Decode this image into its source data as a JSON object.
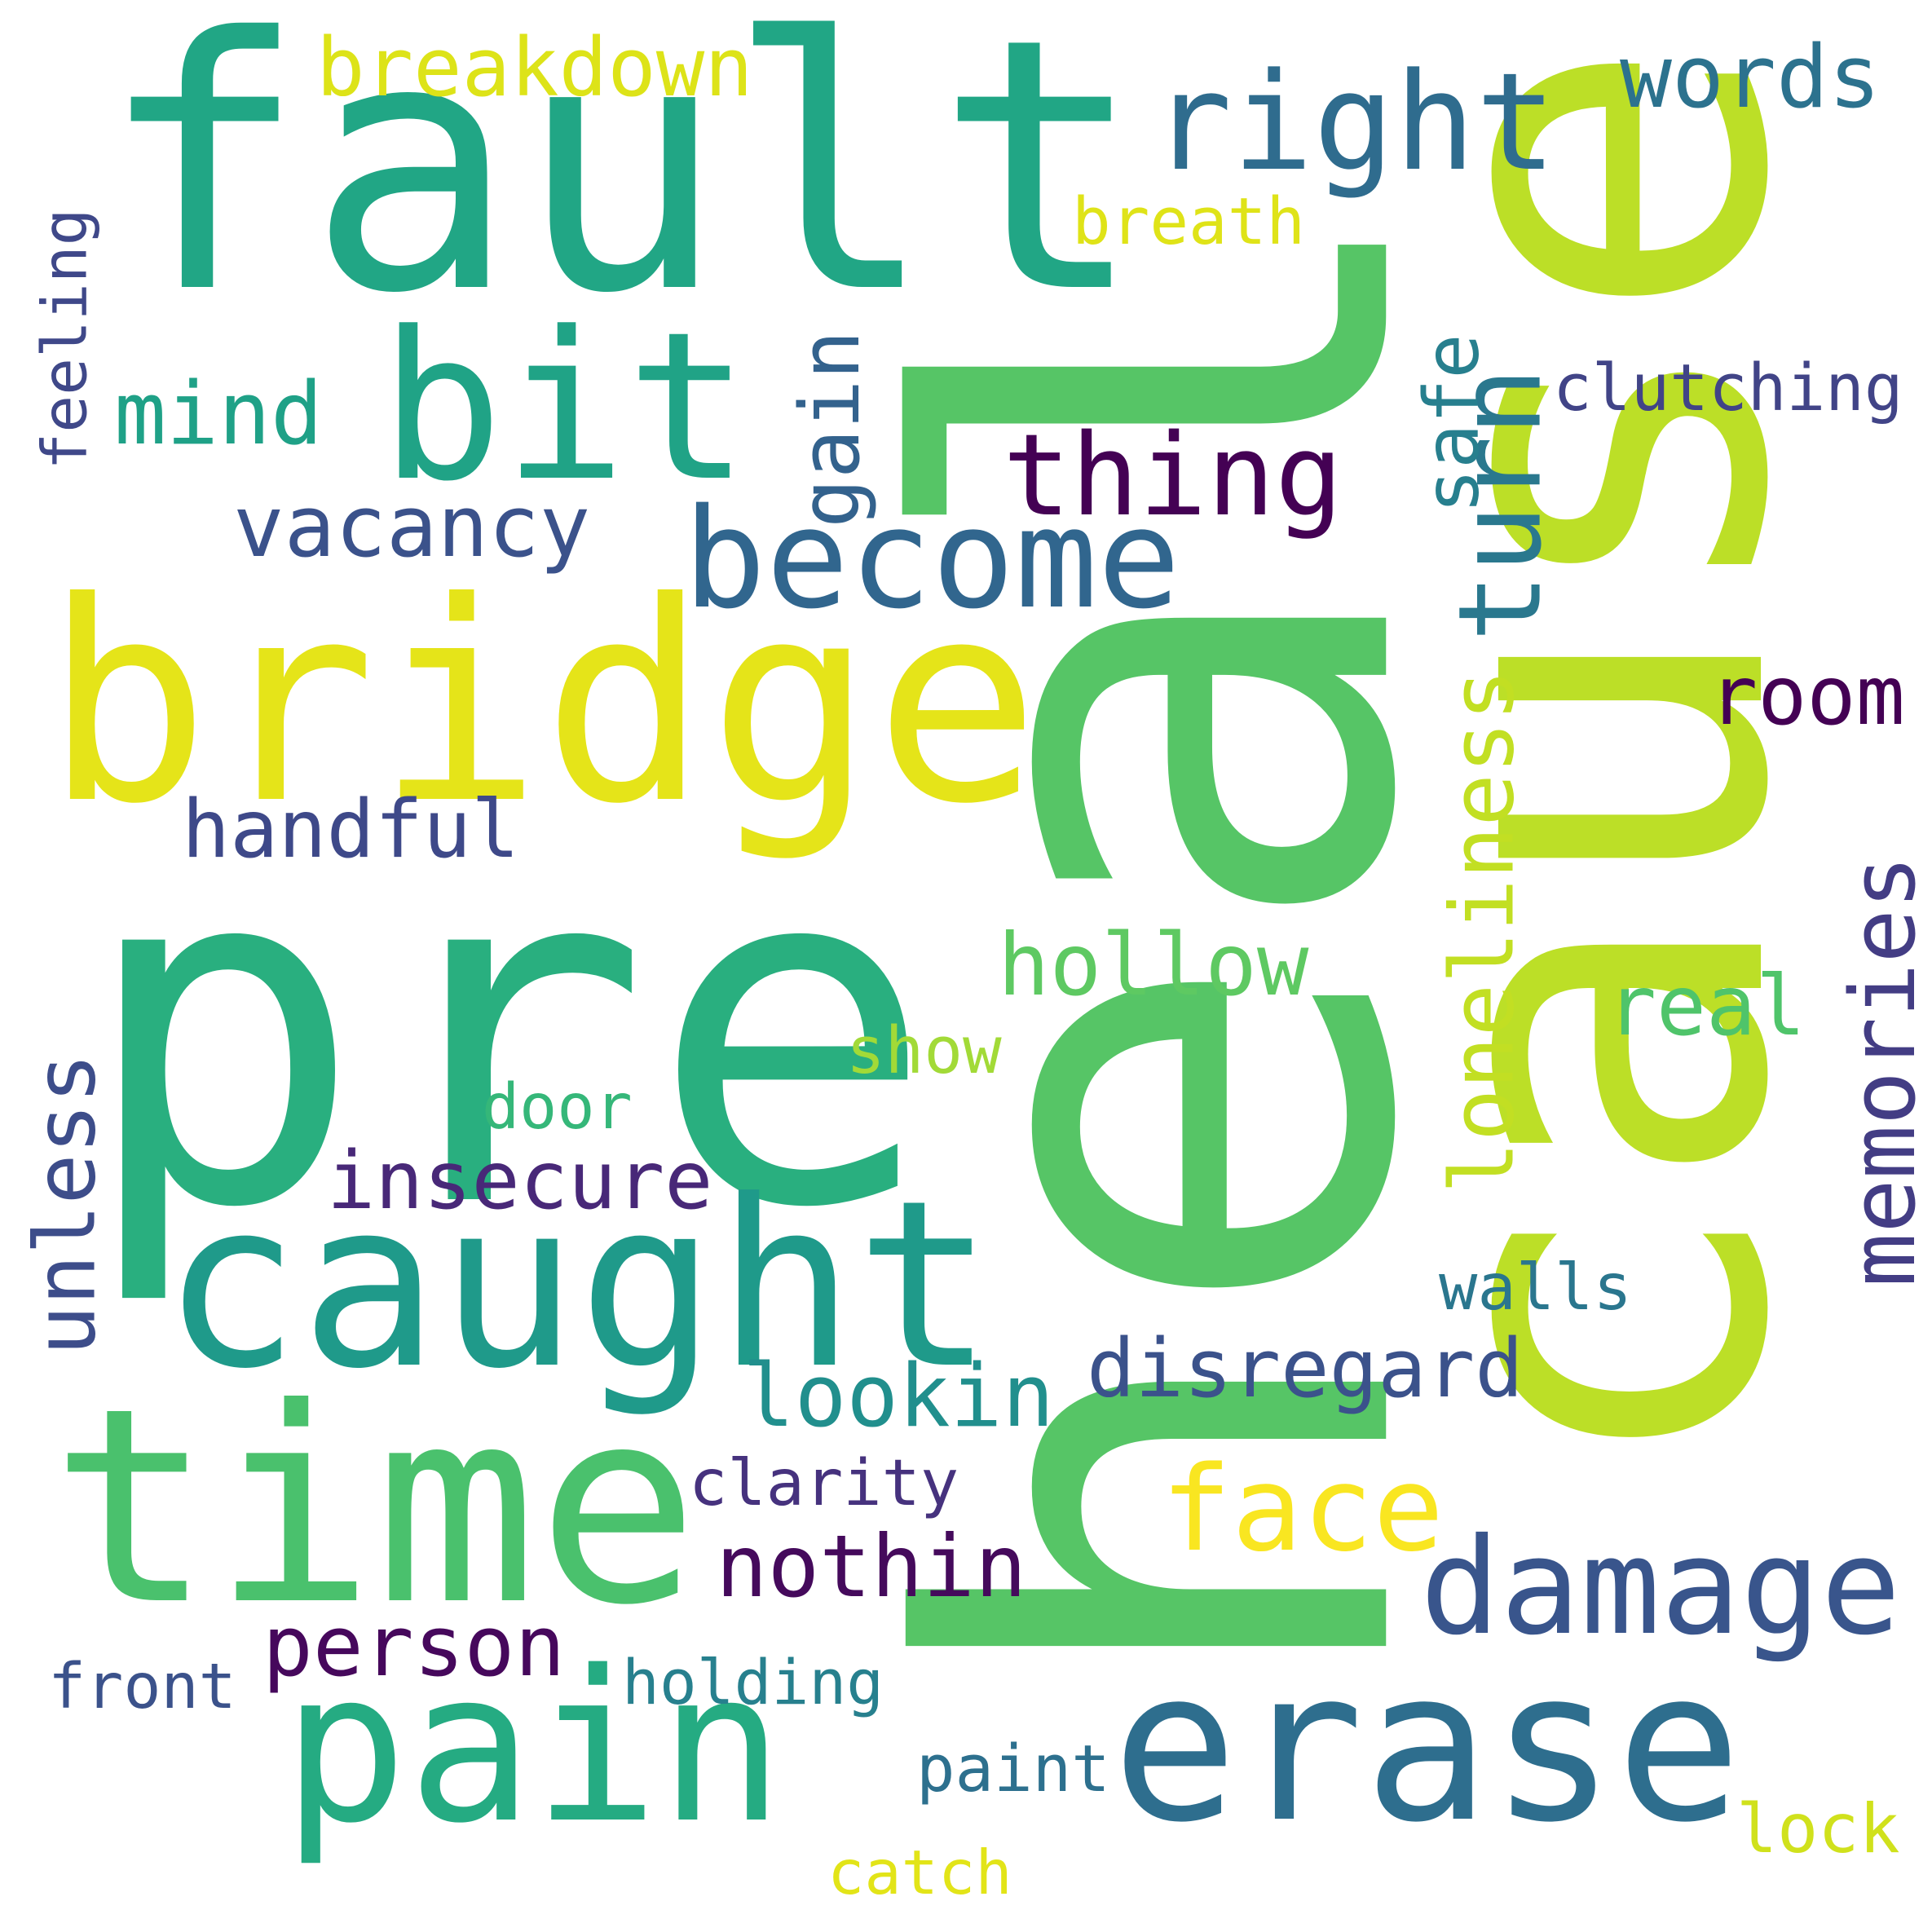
{
  "words": [
    {
      "id": "heal",
      "text": "heal",
      "color": "#56c566"
    },
    {
      "id": "cause",
      "text": "cause",
      "color": "#bcdf27"
    },
    {
      "id": "fault",
      "text": "fault",
      "color": "#21a685"
    },
    {
      "id": "pre",
      "text": "pre",
      "color": "#29af7f"
    },
    {
      "id": "bridge",
      "text": "bridge",
      "color": "#e5e419"
    },
    {
      "id": "caught",
      "text": "caught",
      "color": "#1f9a8a"
    },
    {
      "id": "time",
      "text": "time",
      "color": "#4ac16d"
    },
    {
      "id": "bit",
      "text": "bit",
      "color": "#20a386"
    },
    {
      "id": "right",
      "text": "right",
      "color": "#2f6c8e"
    },
    {
      "id": "pain",
      "text": "pain",
      "color": "#25ab82"
    },
    {
      "id": "erase",
      "text": "erase",
      "color": "#2e6e8e"
    },
    {
      "id": "damage",
      "text": "damage",
      "color": "#39558c"
    },
    {
      "id": "become",
      "text": "become",
      "color": "#31668e"
    },
    {
      "id": "thing",
      "text": "thing",
      "color": "#440154"
    },
    {
      "id": "turn",
      "text": "turn",
      "color": "#2a788e"
    },
    {
      "id": "face",
      "text": "face",
      "color": "#f9e621"
    },
    {
      "id": "nothin",
      "text": "nothin",
      "color": "#450a5c"
    },
    {
      "id": "lookin",
      "text": "lookin",
      "color": "#218f8d"
    },
    {
      "id": "hollow",
      "text": "hollow",
      "color": "#5ec962"
    },
    {
      "id": "disregard",
      "text": "disregard",
      "color": "#3b528b"
    },
    {
      "id": "insecure",
      "text": "insecure",
      "color": "#482878"
    },
    {
      "id": "person",
      "text": "person",
      "color": "#46085c"
    },
    {
      "id": "handful",
      "text": "handful",
      "color": "#3e4989"
    },
    {
      "id": "vacancy",
      "text": "vacancy",
      "color": "#3b528b"
    },
    {
      "id": "mind",
      "text": "mind",
      "color": "#1fa187"
    },
    {
      "id": "gain",
      "text": "gain",
      "color": "#33628d"
    },
    {
      "id": "breakdown",
      "text": "breakdown",
      "color": "#dde318"
    },
    {
      "id": "words",
      "text": "words",
      "color": "#2c728e"
    },
    {
      "id": "breath",
      "text": "breath",
      "color": "#dfe318"
    },
    {
      "id": "safe",
      "text": "safe",
      "color": "#277f8e"
    },
    {
      "id": "clutching",
      "text": "clutching",
      "color": "#414487"
    },
    {
      "id": "room",
      "text": "room",
      "color": "#440154"
    },
    {
      "id": "loneliness",
      "text": "loneliness",
      "color": "#c2df23"
    },
    {
      "id": "memories",
      "text": "memories",
      "color": "#433d84"
    },
    {
      "id": "real",
      "text": "real",
      "color": "#4fc46a"
    },
    {
      "id": "walls",
      "text": "walls",
      "color": "#2a768e"
    },
    {
      "id": "unless",
      "text": "unless",
      "color": "#3d4d8a"
    },
    {
      "id": "feeling",
      "text": "feeling",
      "color": "#3f4889"
    },
    {
      "id": "show",
      "text": "show",
      "color": "#a2da37"
    },
    {
      "id": "door",
      "text": "door",
      "color": "#35b779"
    },
    {
      "id": "clarity",
      "text": "clarity",
      "color": "#46327e"
    },
    {
      "id": "front",
      "text": "front",
      "color": "#3b528b"
    },
    {
      "id": "holding",
      "text": "holding",
      "color": "#27808e"
    },
    {
      "id": "paint",
      "text": "paint",
      "color": "#2d708e"
    },
    {
      "id": "catch",
      "text": "catch",
      "color": "#e2e418"
    },
    {
      "id": "lock",
      "text": "lock",
      "color": "#d0e11c"
    }
  ]
}
